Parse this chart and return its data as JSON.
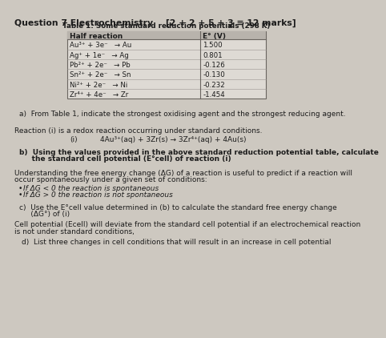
{
  "title_left": "Question 7 Electrochemistry",
  "title_right": "[2 + 2 + 5 + 3̲ ≡ 12 marks]",
  "table_title": "Table 1: Some standard reduction potentials (298 K)",
  "table_col1_header": "Half reaction",
  "table_col2_header": "E° (V)",
  "table_rows": [
    [
      "Au³⁺ + 3e⁻   → Au",
      "1.500"
    ],
    [
      "Ag⁺ + 1e⁻   → Ag",
      "0.801"
    ],
    [
      "Pb²⁺ + 2e⁻   → Pb",
      "-0.126"
    ],
    [
      "Sn²⁺ + 2e⁻   → Sn",
      "-0.130"
    ],
    [
      "Ni²⁺ + 2e⁻   → Ni",
      "-0.232"
    ],
    [
      "Zr⁴⁺ + 4e⁻   → Zr",
      "-1.454"
    ]
  ],
  "part_a": "a)  From Table 1, indicate the strongest oxidising agent and the strongest reducing agent.",
  "reaction_intro": "Reaction (i) is a redox reaction occurring under standard conditions.",
  "reaction_label": "(i)",
  "reaction_eq": "4Au³⁺(aq) + 3Zr(s) → 3Zr⁴⁺(aq) + 4Au(s)",
  "part_b_1": "b)  Using the values provided in the above standard reduction potential table, calculate",
  "part_b_2": "     the standard cell potential (E°cell) of reaction (i)",
  "understanding_1": "Understanding the free energy change (ΔG) of a reaction is useful to predict if a reaction will",
  "understanding_2": "occur spontaneously under a given set of conditions:",
  "bullet1": "If ΔG < 0 the reaction is spontaneous",
  "bullet2": "If ΔG > 0 the reaction is not spontaneous",
  "part_c_1": "c)  Use the E°cell value determined in (b) to calculate the standard free energy change",
  "part_c_2": "     (ΔG°) of (i)",
  "cell_1": "Cell potential (Ecell) will deviate from the standard cell potential if an electrochemical reaction",
  "cell_2": "is not under standard conditions,",
  "part_d": "d)  List three changes in cell conditions that will result in an increase in cell potential",
  "bg_color": "#cdc8c0",
  "text_color": "#1c1c1c",
  "table_fill": "#dedad4",
  "header_fill": "#b8b3ac",
  "border_color": "#6a6560"
}
